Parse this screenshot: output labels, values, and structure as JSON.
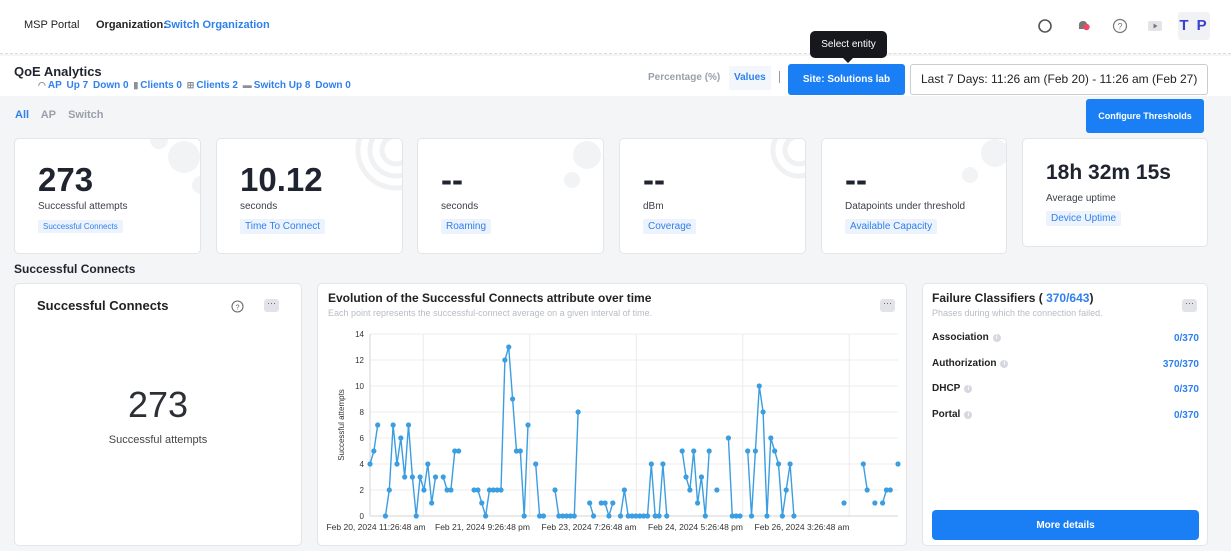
{
  "topbar": {
    "brand": "MSP Portal",
    "org_label": "Organization:",
    "org_link": "Switch Organization",
    "avatar": "T P",
    "icons": [
      "search-icon",
      "notification-bell-icon",
      "help-icon",
      "video-icon"
    ]
  },
  "tooltip": "Select entity",
  "header": {
    "title": "QoE Analytics",
    "stats": {
      "ap": "AP",
      "ap_up": "Up 7",
      "ap_down": "Down 0",
      "clients": "Clients 0",
      "clients2": "Clients 2",
      "switch_up": "Switch Up 8",
      "switch_down": "Down 0"
    },
    "mode_percentage": "Percentage (%)",
    "mode_values": "Values",
    "site_button": "Site: Solutions lab",
    "date_range": "Last 7 Days: 11:26 am (Feb 20) - 11:26 am (Feb 27)"
  },
  "tabs": [
    "All",
    "AP",
    "Switch"
  ],
  "configure_button": "Configure Thresholds",
  "kpis": [
    {
      "value": "273",
      "label": "Successful attempts",
      "tag": "Successful Connects"
    },
    {
      "value": "10.12",
      "label": "seconds",
      "tag": "Time To Connect"
    },
    {
      "value": "--",
      "label": "seconds",
      "tag": "Roaming"
    },
    {
      "value": "--",
      "label": "dBm",
      "tag": "Coverage"
    },
    {
      "value": "--",
      "label": "Datapoints under threshold",
      "tag": "Available Capacity"
    },
    {
      "value": "18h 32m 15s",
      "label": "Average uptime",
      "tag": "Device Uptime"
    }
  ],
  "section_title": "Successful Connects",
  "card1": {
    "title": "Successful Connects",
    "value": "273",
    "label": "Successful attempts"
  },
  "card2": {
    "title": "Evolution of the Successful Connects attribute over time",
    "subtitle": "Each point represents the successful-connect average on a given interval of time."
  },
  "card3": {
    "title_prefix": "Failure Classifiers (",
    "title_count": "370/643",
    "title_suffix": ")",
    "subtitle": "Phases during which the connection failed.",
    "rows": [
      {
        "label": "Association",
        "value": "0/370"
      },
      {
        "label": "Authorization",
        "value": "370/370"
      },
      {
        "label": "DHCP",
        "value": "0/370"
      },
      {
        "label": "Portal",
        "value": "0/370"
      }
    ],
    "button": "More details"
  },
  "chart_data": {
    "type": "line",
    "title": "",
    "xlabel": "",
    "ylabel": "Successful attempts",
    "ylim": [
      0,
      14
    ],
    "yticks": [
      0,
      2,
      4,
      6,
      8,
      10,
      12,
      14
    ],
    "x_tick_labels": [
      "Feb 20, 2024 11:26:48 am",
      "Feb 21, 2024 9:26:48 pm",
      "Feb 23, 2024 7:26:48 am",
      "Feb 24, 2024 5:26:48 pm",
      "Feb 26, 2024 3:26:48 am"
    ],
    "grid": true,
    "color": "#3b9ee0",
    "series": [
      {
        "values": [
          4,
          5,
          7,
          null,
          0,
          2,
          7,
          4,
          6,
          3,
          7,
          3,
          0,
          3,
          2,
          4,
          1,
          3,
          null,
          3,
          2,
          2,
          5,
          5,
          null,
          null,
          null,
          2,
          2,
          1,
          0,
          2,
          2,
          2,
          2,
          12,
          13,
          9,
          5,
          5,
          0,
          7,
          null,
          4,
          0,
          0,
          null,
          null,
          2,
          0,
          0,
          0,
          0,
          0,
          8,
          null,
          null,
          1,
          0,
          null,
          1,
          1,
          0,
          1,
          null,
          0,
          2,
          0,
          0,
          0,
          0,
          0,
          0,
          4,
          0,
          0,
          4,
          0,
          null,
          null,
          null,
          5,
          3,
          2,
          5,
          1,
          3,
          0,
          5,
          null,
          2,
          null,
          null,
          6,
          0,
          0,
          0,
          null,
          5,
          0,
          5,
          10,
          8,
          0,
          6,
          5,
          4,
          0,
          2,
          4,
          0,
          null,
          null,
          null,
          null,
          null,
          null,
          null,
          null,
          null,
          null,
          null,
          null,
          1,
          null,
          null,
          null,
          null,
          4,
          2,
          null,
          1,
          null,
          1,
          2,
          2,
          null,
          4
        ]
      }
    ]
  }
}
